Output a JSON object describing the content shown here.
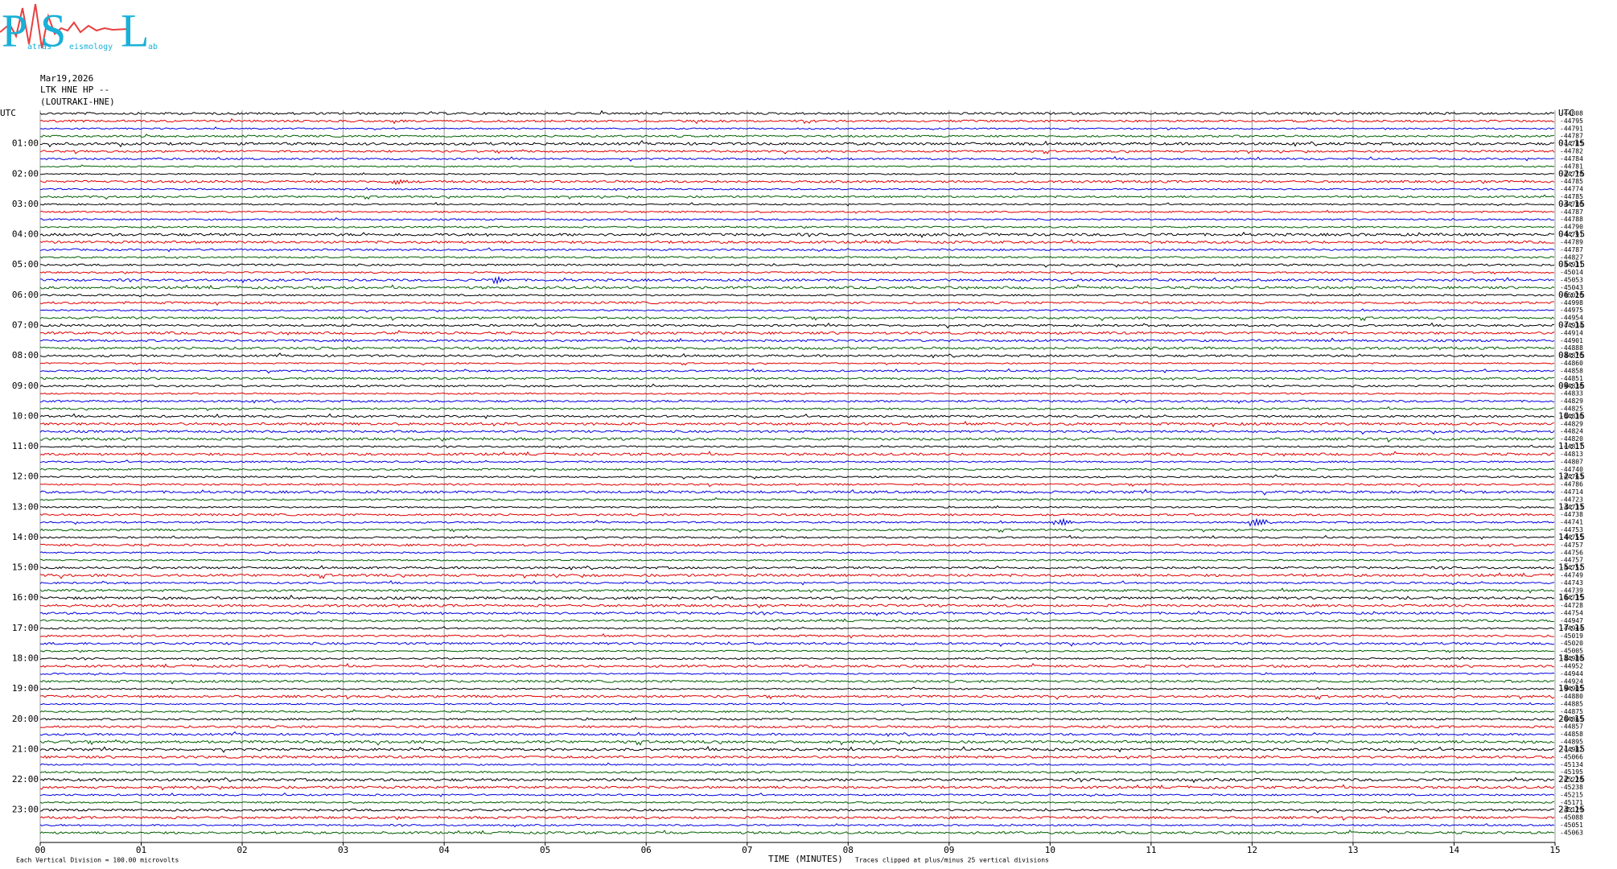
{
  "logo": {
    "letters": [
      "P",
      "S",
      "L"
    ],
    "words": [
      "atras",
      "eismology",
      "ab"
    ]
  },
  "header": {
    "date": "Mar19,2026",
    "channel": "LTK HNE HP --",
    "station": "(LOUTRAKI-HNE)"
  },
  "left_labels": [
    "UTC",
    "01:00",
    "02:00",
    "03:00",
    "04:00",
    "05:00",
    "06:00",
    "07:00",
    "08:00",
    "09:00",
    "10:00",
    "11:00",
    "12:00",
    "13:00",
    "14:00",
    "15:00",
    "16:00",
    "17:00",
    "18:00",
    "19:00",
    "20:00",
    "21:00",
    "22:00",
    "23:00"
  ],
  "right_labels": [
    "UTC",
    "01:15",
    "02:15",
    "03:15",
    "04:15",
    "05:15",
    "06:15",
    "07:15",
    "08:15",
    "09:15",
    "10:15",
    "11:15",
    "12:15",
    "13:15",
    "14:15",
    "15:15",
    "16:15",
    "17:15",
    "18:15",
    "19:15",
    "20:15",
    "21:15",
    "22:15",
    "23:15"
  ],
  "trace_offsets": [
    -44808,
    -44795,
    -44791,
    -44787,
    -44785,
    -44782,
    -44784,
    -44781,
    -44778,
    -44785,
    -44774,
    -44785,
    -44786,
    -44787,
    -44788,
    -44790,
    -44791,
    -44789,
    -44787,
    -44827,
    -44931,
    -45014,
    -45053,
    -45043,
    -45026,
    -44998,
    -44975,
    -44954,
    -44934,
    -44914,
    -44901,
    -44888,
    -44876,
    -44860,
    -44858,
    -44851,
    -44838,
    -44833,
    -44829,
    -44825,
    -44830,
    -44829,
    -44824,
    -44820,
    -44817,
    -44813,
    -44807,
    -44740,
    -44763,
    -44786,
    -44714,
    -44723,
    -44733,
    -44738,
    -44741,
    -44753,
    -44755,
    -44757,
    -44756,
    -44757,
    -44752,
    -44749,
    -44743,
    -44739,
    -44735,
    -44728,
    -44754,
    -44947,
    -44944,
    -45019,
    -45020,
    -45005,
    -44980,
    -44952,
    -44944,
    -44924,
    -44905,
    -44880,
    -44885,
    -44875,
    -44865,
    -44857,
    -44858,
    -44895,
    -44982,
    -45066,
    -45134,
    -45195,
    -45228,
    -45238,
    -45215,
    -45171,
    -45129,
    -45088,
    -45051,
    -45063
  ],
  "x_ticks": [
    "00",
    "01",
    "02",
    "03",
    "04",
    "05",
    "06",
    "07",
    "08",
    "09",
    "10",
    "11",
    "12",
    "13",
    "14",
    "15"
  ],
  "x_axis_label": "TIME (MINUTES)",
  "scale_note": "Each Vertical Division =  100.00 microvolts",
  "clip_note": "Traces clipped at plus/minus 25 vertical divisions"
}
